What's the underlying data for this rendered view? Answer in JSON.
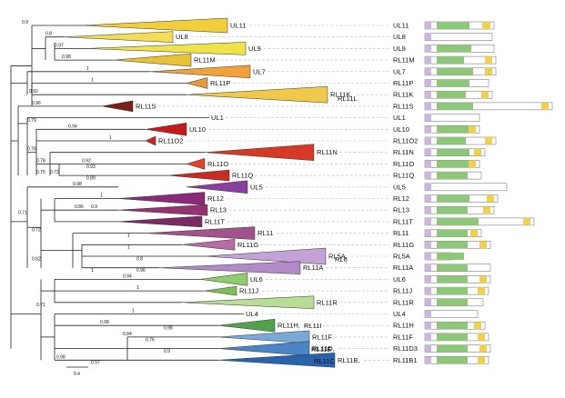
{
  "rows": [
    {
      "gene": "UL11",
      "clade": "UL11",
      "color": "#f2cf3a"
    },
    {
      "gene": "UL8",
      "clade": "UL8",
      "color": "#f4dc55"
    },
    {
      "gene": "UL9",
      "clade": "UL9",
      "color": "#efe24a"
    },
    {
      "gene": "RL11M",
      "clade": "RL11M",
      "color": "#e8c236"
    },
    {
      "gene": "UL7",
      "clade": "UL7",
      "color": "#f2a23a"
    },
    {
      "gene": "RL11P",
      "clade": "RL11P",
      "color": "#e69a3e"
    },
    {
      "gene": "RL11K",
      "clade": "RL11K,",
      "color": "#f1c94a"
    },
    {
      "gene": "RL11S",
      "clade": "RL11S",
      "color": "#7a2016"
    },
    {
      "gene": "UL1",
      "clade": "UL1",
      "color": "#ffffff"
    },
    {
      "gene": "UL10",
      "clade": "UL10",
      "color": "#c41c1c"
    },
    {
      "gene": "RL11O2",
      "clade": "RL11O2",
      "color": "#c62524"
    },
    {
      "gene": "RL11N",
      "clade": "RL11N",
      "color": "#d63a24"
    },
    {
      "gene": "RL11O",
      "clade": "RL11O",
      "color": "#e0452a"
    },
    {
      "gene": "RL11Q",
      "clade": "RL11Q",
      "color": "#c82b25"
    },
    {
      "gene": "UL5",
      "clade": "UL5",
      "color": "#8a3ea0"
    },
    {
      "gene": "RL12",
      "clade": "RL12",
      "color": "#8b2a7a"
    },
    {
      "gene": "RL13",
      "clade": "RL13",
      "color": "#94336f"
    },
    {
      "gene": "RL11T",
      "clade": "RL11T",
      "color": "#7b2a64"
    },
    {
      "gene": "RL11",
      "clade": "RL11",
      "color": "#a2538e"
    },
    {
      "gene": "RL11G",
      "clade": "RL11G",
      "color": "#b86aa2"
    },
    {
      "gene": "RL5A",
      "clade": "RL5A,",
      "color": "#c4a2d8"
    },
    {
      "gene": "RL11A",
      "clade": "RL11A",
      "color": "#b08bc8"
    },
    {
      "gene": "UL6",
      "clade": "UL6",
      "color": "#8ecb6c"
    },
    {
      "gene": "RL11J",
      "clade": "RL11J",
      "color": "#7fbf5a"
    },
    {
      "gene": "RL11R",
      "clade": "RL11R",
      "color": "#b7dd97"
    },
    {
      "gene": "UL4",
      "clade": "UL4",
      "color": "#ffffff"
    },
    {
      "gene": "RL11H",
      "clade": "RL11H,",
      "color": "#52a24d"
    },
    {
      "gene": "RL11F",
      "clade": "RL11F",
      "color": "#79a9d6"
    },
    {
      "gene": "RL11D3",
      "clade": "RL11D,",
      "color": "#4a84c4"
    },
    {
      "gene": "RL11B1",
      "clade": "RL11B,",
      "color": "#2a63ad"
    }
  ],
  "extra_labels": {
    "rl11l": "RL11L",
    "rl6": "RL6",
    "rl11i": "RL11I",
    "rl11e": "RL11E",
    "rl11c": "RL11C"
  },
  "support_values": [
    "0.9",
    "0.8",
    "0.97",
    "0.98",
    "1",
    "1",
    "0.92",
    "0.96",
    "0.79",
    "0.94",
    "0.76",
    "1",
    "0.78",
    "0.92",
    "0.75",
    "0.72",
    "0.93",
    "0.89",
    "0.98",
    "0.71",
    "1",
    "0.86",
    "0.9",
    "0.72",
    "1",
    "1",
    "0.82",
    "0.8",
    "0.96",
    "1",
    "0.94",
    "1",
    "0.71",
    "1",
    "0.98",
    "0.98",
    "0.84",
    "0.76",
    "0.9",
    "0.98",
    "0.97"
  ],
  "scale_bar": "0.4",
  "domain_colors": {
    "signal": "#c9b8dc",
    "domain": "#8fc77a",
    "tm": "#f1cf4f"
  }
}
